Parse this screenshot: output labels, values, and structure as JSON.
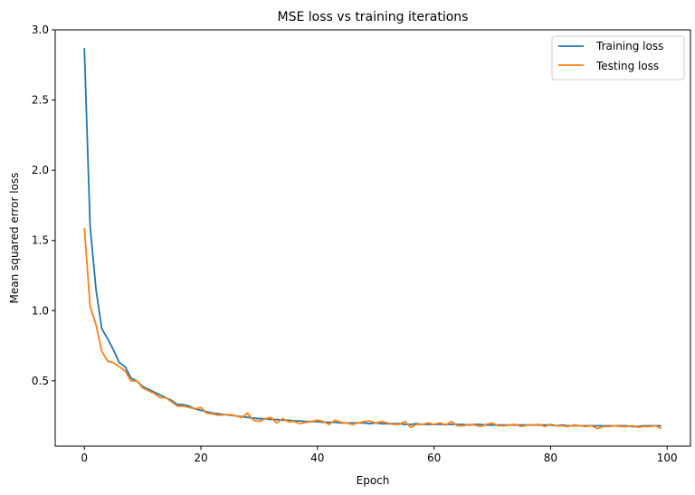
{
  "chart_data": {
    "type": "line",
    "title": "MSE loss vs training iterations",
    "xlabel": "Epoch",
    "ylabel": "Mean squared error loss",
    "xlim": [
      -5,
      104
    ],
    "ylim": [
      0.035,
      3.0
    ],
    "xticks": [
      0,
      20,
      40,
      60,
      80,
      100
    ],
    "xtick_labels": [
      "0",
      "20",
      "40",
      "60",
      "80",
      "100"
    ],
    "yticks": [
      0.5,
      1.0,
      1.5,
      2.0,
      2.5,
      3.0
    ],
    "ytick_labels": [
      "0.5",
      "1.0",
      "1.5",
      "2.0",
      "2.5",
      "3.0"
    ],
    "grid": false,
    "legend": "top-right",
    "series": [
      {
        "name": "Training loss",
        "color": "#1f77b4",
        "values": [
          2.87,
          1.6,
          1.15,
          0.87,
          0.8,
          0.72,
          0.63,
          0.6,
          0.52,
          0.5,
          0.46,
          0.44,
          0.42,
          0.4,
          0.38,
          0.36,
          0.33,
          0.33,
          0.32,
          0.3,
          0.29,
          0.28,
          0.27,
          0.265,
          0.26,
          0.255,
          0.25,
          0.245,
          0.24,
          0.235,
          0.23,
          0.23,
          0.225,
          0.225,
          0.22,
          0.22,
          0.215,
          0.215,
          0.21,
          0.21,
          0.21,
          0.205,
          0.205,
          0.205,
          0.2,
          0.2,
          0.2,
          0.2,
          0.2,
          0.195,
          0.2,
          0.195,
          0.195,
          0.195,
          0.195,
          0.19,
          0.19,
          0.195,
          0.19,
          0.19,
          0.19,
          0.19,
          0.19,
          0.19,
          0.19,
          0.19,
          0.185,
          0.19,
          0.19,
          0.185,
          0.185,
          0.185,
          0.185,
          0.185,
          0.185,
          0.185,
          0.185,
          0.185,
          0.185,
          0.185,
          0.185,
          0.18,
          0.185,
          0.18,
          0.18,
          0.18,
          0.18,
          0.18,
          0.18,
          0.18,
          0.18,
          0.18,
          0.18,
          0.18,
          0.175,
          0.175,
          0.18,
          0.18,
          0.18,
          0.18
        ]
      },
      {
        "name": "Testing loss",
        "color": "#ff7f0e",
        "values": [
          1.59,
          1.03,
          0.9,
          0.71,
          0.64,
          0.63,
          0.6,
          0.57,
          0.5,
          0.5,
          0.45,
          0.43,
          0.41,
          0.38,
          0.38,
          0.35,
          0.32,
          0.32,
          0.31,
          0.3,
          0.31,
          0.27,
          0.265,
          0.255,
          0.26,
          0.26,
          0.25,
          0.24,
          0.27,
          0.22,
          0.21,
          0.23,
          0.24,
          0.2,
          0.23,
          0.21,
          0.21,
          0.195,
          0.205,
          0.21,
          0.22,
          0.21,
          0.19,
          0.22,
          0.205,
          0.2,
          0.19,
          0.2,
          0.21,
          0.215,
          0.2,
          0.21,
          0.2,
          0.19,
          0.19,
          0.21,
          0.17,
          0.19,
          0.19,
          0.2,
          0.19,
          0.2,
          0.185,
          0.21,
          0.18,
          0.18,
          0.19,
          0.185,
          0.175,
          0.19,
          0.2,
          0.18,
          0.18,
          0.185,
          0.19,
          0.175,
          0.185,
          0.185,
          0.19,
          0.175,
          0.19,
          0.18,
          0.18,
          0.175,
          0.185,
          0.18,
          0.175,
          0.18,
          0.16,
          0.175,
          0.175,
          0.18,
          0.175,
          0.175,
          0.18,
          0.17,
          0.175,
          0.175,
          0.18,
          0.16
        ]
      }
    ]
  }
}
